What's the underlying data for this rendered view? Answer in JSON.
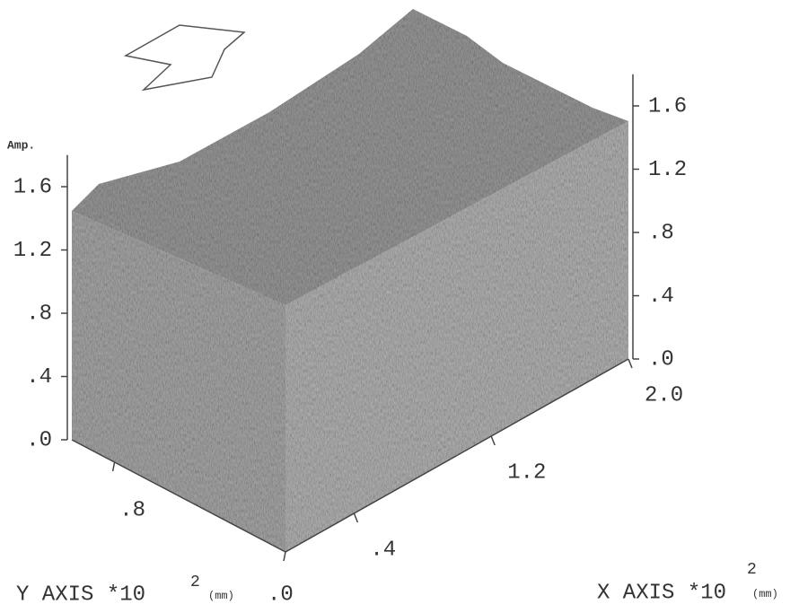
{
  "chart_data": {
    "type": "surface3d",
    "z_label": "Amp.",
    "x_label": "X AXIS *10",
    "x_label_exponent": "2",
    "x_label_unit": "(mm)",
    "y_label": "Y AXIS *10",
    "y_label_exponent": "2",
    "y_label_unit": "(mm)",
    "xlim": [
      0,
      2.0
    ],
    "xticks": [
      {
        "value": 0.4,
        "label": ".4"
      },
      {
        "value": 1.2,
        "label": "1.2"
      },
      {
        "value": 2.0,
        "label": "2.0"
      }
    ],
    "ylim": [
      0,
      1.0
    ],
    "yticks": [
      {
        "value": 0,
        "label": ".0"
      },
      {
        "value": 0.8,
        "label": ".8"
      }
    ],
    "zlim": [
      0,
      1.8
    ],
    "zticks": [
      {
        "value": 0,
        "label": ".0"
      },
      {
        "value": 0.4,
        "label": ".4"
      },
      {
        "value": 0.8,
        "label": ".8"
      },
      {
        "value": 1.2,
        "label": "1.2"
      },
      {
        "value": 1.6,
        "label": "1.6"
      }
    ]
  }
}
